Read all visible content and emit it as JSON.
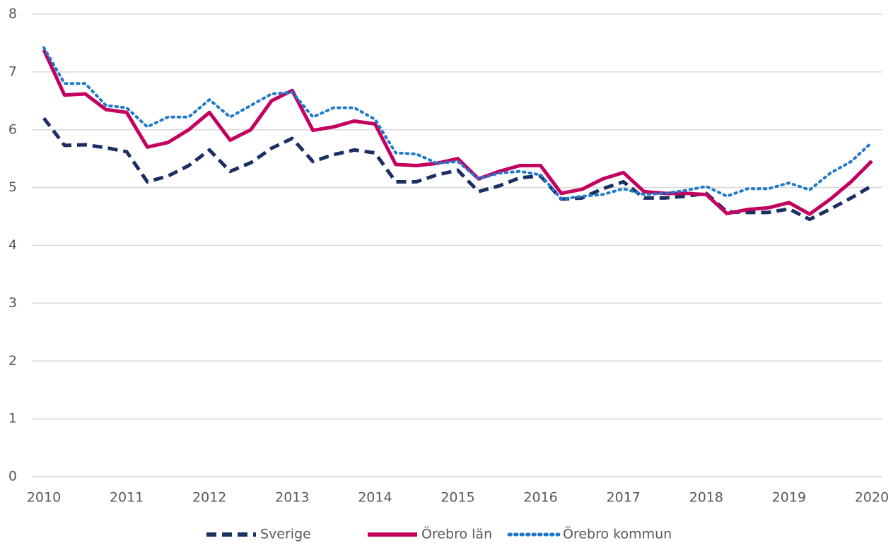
{
  "chart_data": {
    "type": "line",
    "x": [
      2010,
      2010.25,
      2010.5,
      2010.75,
      2011,
      2011.25,
      2011.5,
      2011.75,
      2012,
      2012.25,
      2012.5,
      2012.75,
      2013,
      2013.25,
      2013.5,
      2013.75,
      2014,
      2014.25,
      2014.5,
      2014.75,
      2015,
      2015.25,
      2015.5,
      2015.75,
      2016,
      2016.25,
      2016.5,
      2016.75,
      2017,
      2017.25,
      2017.5,
      2017.75,
      2018,
      2018.25,
      2018.5,
      2018.75,
      2019,
      2019.25,
      2019.5,
      2019.75,
      2020
    ],
    "series": [
      {
        "name": "Sverige",
        "color": "#1b2f63",
        "dash": "dashed",
        "values": [
          6.2,
          5.73,
          5.74,
          5.69,
          5.62,
          5.1,
          5.2,
          5.38,
          5.65,
          5.28,
          5.43,
          5.68,
          5.85,
          5.45,
          5.57,
          5.65,
          5.6,
          5.1,
          5.1,
          5.22,
          5.3,
          4.93,
          5.03,
          5.17,
          5.2,
          4.8,
          4.82,
          4.98,
          5.1,
          4.82,
          4.82,
          4.85,
          4.9,
          4.58,
          4.57,
          4.57,
          4.63,
          4.45,
          4.63,
          4.82,
          5.03
        ]
      },
      {
        "name": "Örebro län",
        "color": "#c4005f",
        "dash": "solid",
        "values": [
          7.38,
          6.6,
          6.62,
          6.35,
          6.3,
          5.7,
          5.78,
          6.0,
          6.3,
          5.82,
          6.0,
          6.5,
          6.68,
          5.99,
          6.05,
          6.15,
          6.1,
          5.4,
          5.38,
          5.42,
          5.5,
          5.15,
          5.28,
          5.38,
          5.38,
          4.9,
          4.97,
          5.15,
          5.26,
          4.93,
          4.9,
          4.9,
          4.88,
          4.55,
          4.62,
          4.65,
          4.74,
          4.54,
          4.8,
          5.1,
          5.46
        ]
      },
      {
        "name": "Örebro kommun",
        "color": "#1f7acb",
        "dash": "dotted",
        "values": [
          7.42,
          6.8,
          6.8,
          6.42,
          6.38,
          6.05,
          6.22,
          6.22,
          6.52,
          6.22,
          6.42,
          6.62,
          6.65,
          6.22,
          6.38,
          6.38,
          6.18,
          5.6,
          5.58,
          5.42,
          5.45,
          5.15,
          5.25,
          5.28,
          5.22,
          4.8,
          4.85,
          4.88,
          4.98,
          4.88,
          4.9,
          4.95,
          5.02,
          4.85,
          4.98,
          4.98,
          5.08,
          4.96,
          5.25,
          5.45,
          5.78
        ]
      }
    ],
    "xlim": [
      2010,
      2020
    ],
    "xticks": [
      2010,
      2011,
      2012,
      2013,
      2014,
      2015,
      2016,
      2017,
      2018,
      2019,
      2020
    ],
    "ylim": [
      0,
      8
    ],
    "yticks": [
      0,
      1,
      2,
      3,
      4,
      5,
      6,
      7,
      8
    ],
    "grid": true,
    "legend": "bottom"
  }
}
